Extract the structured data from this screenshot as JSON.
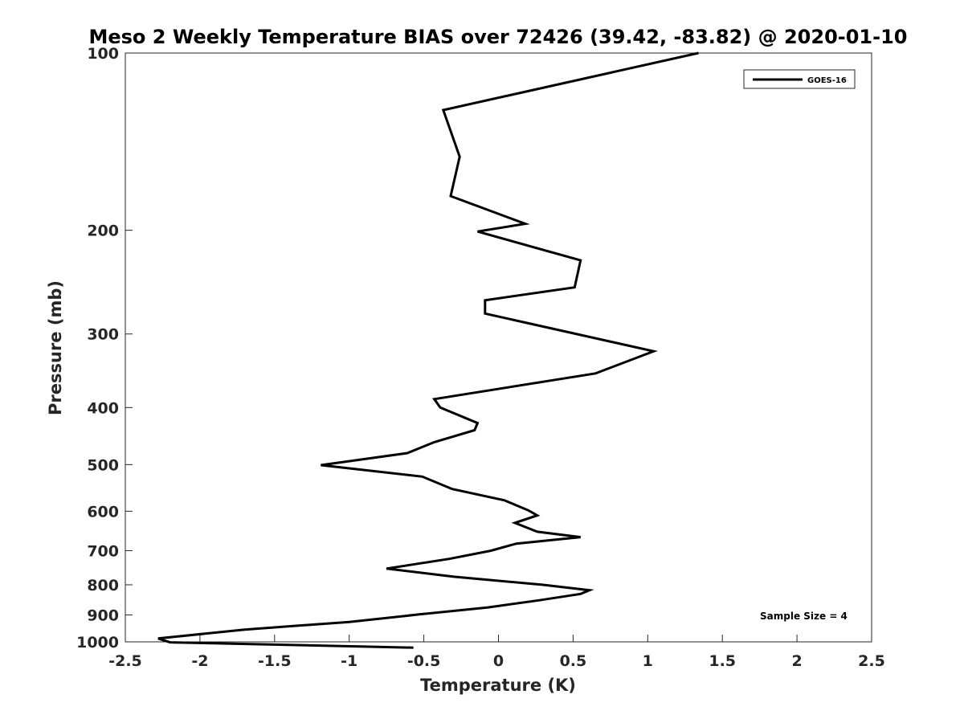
{
  "chart_data": {
    "type": "line",
    "title": "Meso 2 Weekly Temperature BIAS over 72426 (39.42, -83.82) @ 2020-01-10",
    "xlabel": "Temperature (K)",
    "ylabel": "Pressure (mb)",
    "xlim": [
      -2.5,
      2.5
    ],
    "ylim": [
      100,
      1000
    ],
    "y_scale": "log",
    "y_reversed": true,
    "x_ticks": [
      "-2.5",
      "-2",
      "-1.5",
      "-1",
      "-0.5",
      "0",
      "0.5",
      "1",
      "1.5",
      "2",
      "2.5"
    ],
    "x_tick_values": [
      -2.5,
      -2,
      -1.5,
      -1,
      -0.5,
      0,
      0.5,
      1,
      1.5,
      2,
      2.5
    ],
    "y_ticks": [
      "100",
      "200",
      "300",
      "400",
      "500",
      "600",
      "700",
      "800",
      "900",
      "1000"
    ],
    "y_tick_values": [
      100,
      200,
      300,
      400,
      500,
      600,
      700,
      800,
      900,
      1000
    ],
    "grid": false,
    "legend_position": "top-right",
    "series": [
      {
        "name": "GOES-16",
        "color": "#000000",
        "points": [
          [
            1.34,
            100
          ],
          [
            -0.37,
            125
          ],
          [
            -0.26,
            150
          ],
          [
            -0.32,
            175
          ],
          [
            0.18,
            195
          ],
          [
            -0.14,
            201
          ],
          [
            0.55,
            225
          ],
          [
            0.51,
            250
          ],
          [
            -0.09,
            263
          ],
          [
            -0.09,
            277
          ],
          [
            1.04,
            321
          ],
          [
            0.65,
            350
          ],
          [
            -0.43,
            387
          ],
          [
            -0.39,
            400
          ],
          [
            -0.14,
            425
          ],
          [
            -0.16,
            437
          ],
          [
            -0.43,
            458
          ],
          [
            -0.61,
            478
          ],
          [
            -1.19,
            501
          ],
          [
            -0.51,
            524
          ],
          [
            -0.31,
            550
          ],
          [
            0.04,
            575
          ],
          [
            0.2,
            598
          ],
          [
            0.26,
            610
          ],
          [
            0.11,
            628
          ],
          [
            0.26,
            650
          ],
          [
            0.55,
            664
          ],
          [
            0.12,
            681
          ],
          [
            -0.05,
            700
          ],
          [
            -0.33,
            723
          ],
          [
            -0.75,
            751
          ],
          [
            -0.3,
            775
          ],
          [
            0.3,
            800
          ],
          [
            0.61,
            817
          ],
          [
            0.55,
            829
          ],
          [
            0.27,
            850
          ],
          [
            -0.07,
            874
          ],
          [
            -0.53,
            898
          ],
          [
            -1.0,
            925
          ],
          [
            -1.7,
            953
          ],
          [
            -2.28,
            987
          ],
          [
            -2.2,
            1002
          ],
          [
            -0.57,
            1023
          ]
        ]
      }
    ],
    "legend": [
      "GOES-16"
    ],
    "annotation": "Sample Size = 4"
  }
}
